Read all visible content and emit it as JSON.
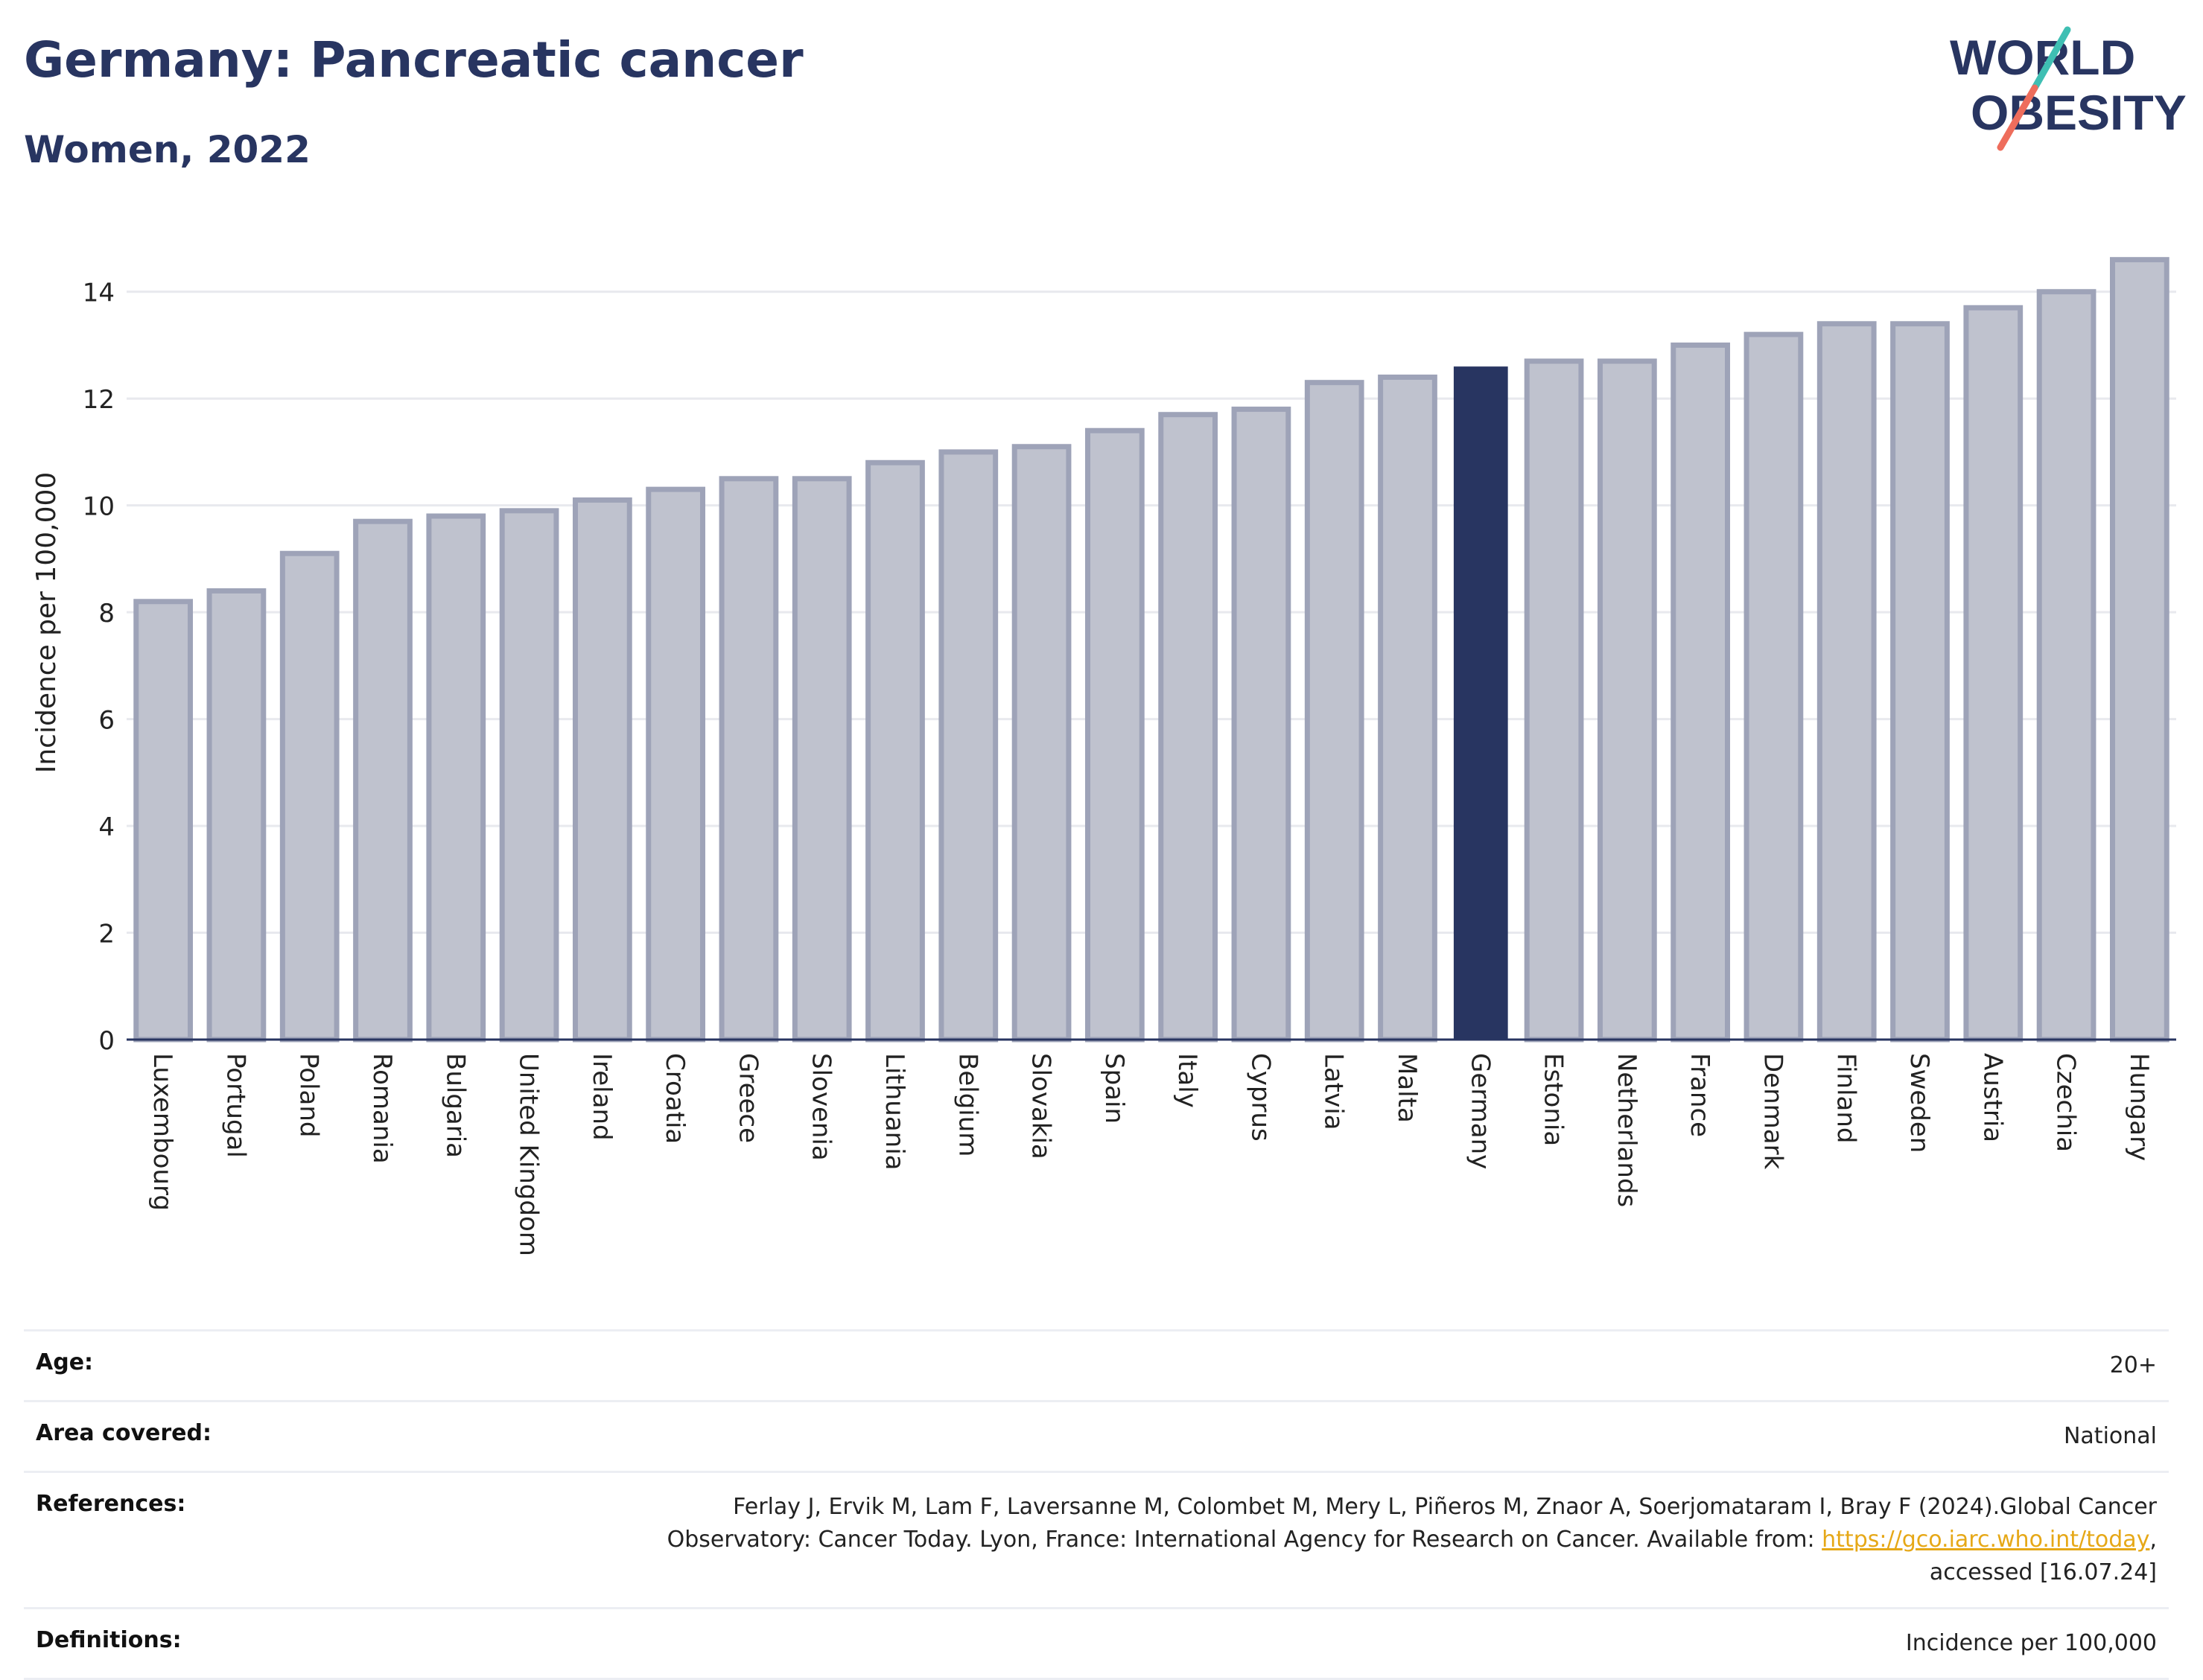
{
  "header": {
    "title": "Germany: Pancreatic cancer",
    "subtitle": "Women, 2022"
  },
  "logo": {
    "line1": "WORLD",
    "line2": "OBESITY"
  },
  "colors": {
    "highlight": "#283561",
    "bar_fill": "#bfc2ce",
    "bar_stroke": "#9ea3b8",
    "accent_teal": "#3fbfb3",
    "accent_coral": "#ee6d5c"
  },
  "chart_data": {
    "type": "bar",
    "ylabel": "Incidence per 100,000",
    "ylim": [
      0,
      15
    ],
    "yticks": [
      0,
      2,
      4,
      6,
      8,
      10,
      12,
      14
    ],
    "grid": true,
    "highlight": "Germany",
    "categories": [
      "Luxembourg",
      "Portugal",
      "Poland",
      "Romania",
      "Bulgaria",
      "United Kingdom",
      "Ireland",
      "Croatia",
      "Greece",
      "Slovenia",
      "Lithuania",
      "Belgium",
      "Slovakia",
      "Spain",
      "Italy",
      "Cyprus",
      "Latvia",
      "Malta",
      "Germany",
      "Estonia",
      "Netherlands",
      "France",
      "Denmark",
      "Finland",
      "Sweden",
      "Austria",
      "Czechia",
      "Hungary"
    ],
    "values": [
      8.2,
      8.4,
      9.1,
      9.7,
      9.8,
      9.9,
      10.1,
      10.3,
      10.5,
      10.5,
      10.8,
      11.0,
      11.1,
      11.4,
      11.7,
      11.8,
      12.3,
      12.4,
      12.6,
      12.7,
      12.7,
      13.0,
      13.2,
      13.4,
      13.4,
      13.7,
      14.0,
      14.6
    ]
  },
  "info": {
    "age_label": "Age:",
    "age_value": "20+",
    "area_label": "Area covered:",
    "area_value": "National",
    "references_label": "References:",
    "references_line1": "Ferlay J, Ervik M, Lam F, Laversanne M, Colombet M, Mery L, Piñeros M, Znaor A, Soerjomataram I, Bray F (2024).Global Cancer",
    "references_line2": "Observatory: Cancer Today. Lyon, France: International Agency for Research on Cancer. Available from: ",
    "references_link": "https://gco.iarc.who.int/today",
    "references_after_link": ",",
    "references_line3": "accessed [16.07.24]",
    "definitions_label": "Definitions:",
    "definitions_value": "Incidence per 100,000"
  }
}
